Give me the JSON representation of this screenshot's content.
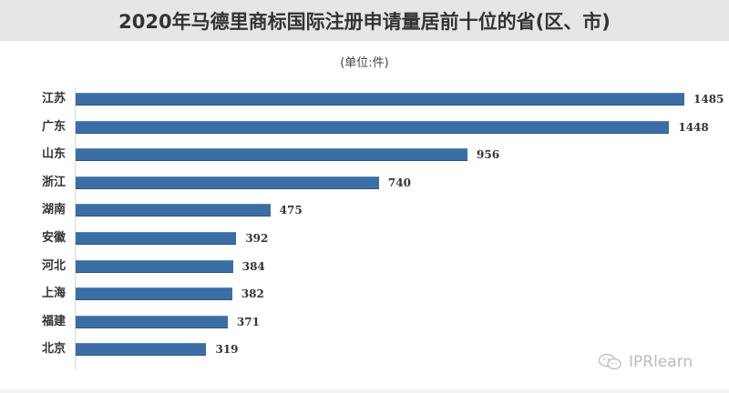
{
  "header": {
    "title": "2020年马德里商标国际注册申请量居前十位的省(区、市)",
    "unit": "(单位:件)"
  },
  "watermark": {
    "icon": "wechat-icon",
    "text": "IPRlearn"
  },
  "colors": {
    "bar": "#3a6ea5",
    "title_bg": "#e6e6e6"
  },
  "chart_data": {
    "type": "bar",
    "orientation": "horizontal",
    "title": "2020年马德里商标国际注册申请量居前十位的省(区、市)",
    "subtitle": "(单位:件)",
    "xlabel": "",
    "ylabel": "",
    "categories": [
      "江苏",
      "广东",
      "山东",
      "浙江",
      "湖南",
      "安徽",
      "河北",
      "上海",
      "福建",
      "北京"
    ],
    "values": [
      1485,
      1448,
      956,
      740,
      475,
      392,
      384,
      382,
      371,
      319
    ],
    "data_labels": [
      "1485",
      "1448",
      "956",
      "740",
      "475",
      "392",
      "384",
      "382",
      "371",
      "319"
    ],
    "xlim": [
      0,
      1485
    ],
    "grid": false,
    "legend": "none"
  }
}
